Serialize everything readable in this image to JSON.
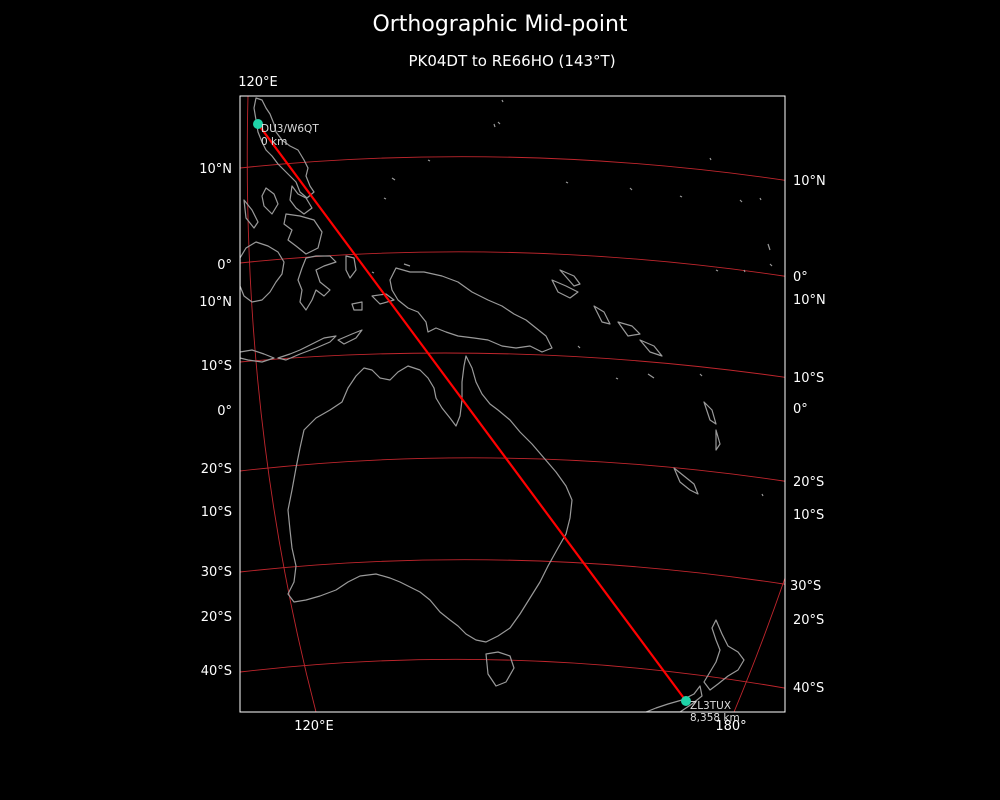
{
  "title": "Orthographic Mid-point",
  "subtitle": "PK04DT to RE66HO (143°T)",
  "colors": {
    "background": "#000000",
    "coastline": "#9a9a9a",
    "graticule": "#c0262d",
    "path": "#ff0000",
    "station": "#1fd3a8"
  },
  "lat_labels_left": [
    "10°N",
    "0°",
    "10°N",
    "10°S",
    "0°",
    "20°S",
    "10°S",
    "30°S",
    "20°S",
    "40°S"
  ],
  "lat_labels_right": [
    "10°N",
    "0°",
    "10°N",
    "10°S",
    "0°",
    "20°S",
    "10°S",
    "30°S",
    "20°S",
    "40°S"
  ],
  "lon_labels": {
    "top_left": "120°E",
    "bottom_left": "120°E",
    "bottom_right": "180°"
  },
  "start_station": {
    "callsign": "DU3/W6QT",
    "distance": "0 km"
  },
  "end_station": {
    "callsign": "ZL3TUX",
    "distance": "8,358 km"
  }
}
